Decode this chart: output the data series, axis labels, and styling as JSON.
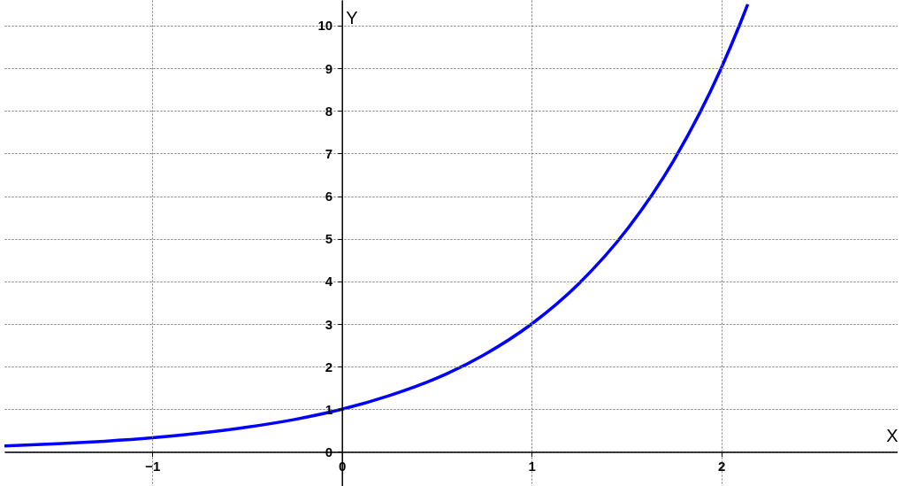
{
  "chart_data": {
    "type": "line",
    "xlabel": "X",
    "ylabel": "Y",
    "x": [
      -1.78,
      -1.5,
      -1.25,
      -1,
      -0.75,
      -0.5,
      -0.25,
      0,
      0.25,
      0.5,
      0.75,
      1,
      1.25,
      1.5,
      1.75,
      2,
      2.1,
      2.14
    ],
    "series": [
      {
        "color": "#0000ff",
        "values": [
          0.14,
          0.19,
          0.25,
          0.33,
          0.44,
          0.58,
          0.76,
          1,
          1.32,
          1.73,
          2.28,
          3,
          3.95,
          5.2,
          6.84,
          9,
          10.05,
          10.5
        ]
      }
    ],
    "xlim": [
      -1.78,
      2.93
    ],
    "ylim": [
      -0.8,
      10.6
    ],
    "xticks": [
      {
        "value": -1,
        "label": "−1"
      },
      0,
      1,
      2
    ],
    "yticks": [
      0,
      1,
      2,
      3,
      4,
      5,
      6,
      7,
      8,
      9,
      10
    ],
    "grid": true,
    "marker": "none",
    "line_style": "solid"
  }
}
